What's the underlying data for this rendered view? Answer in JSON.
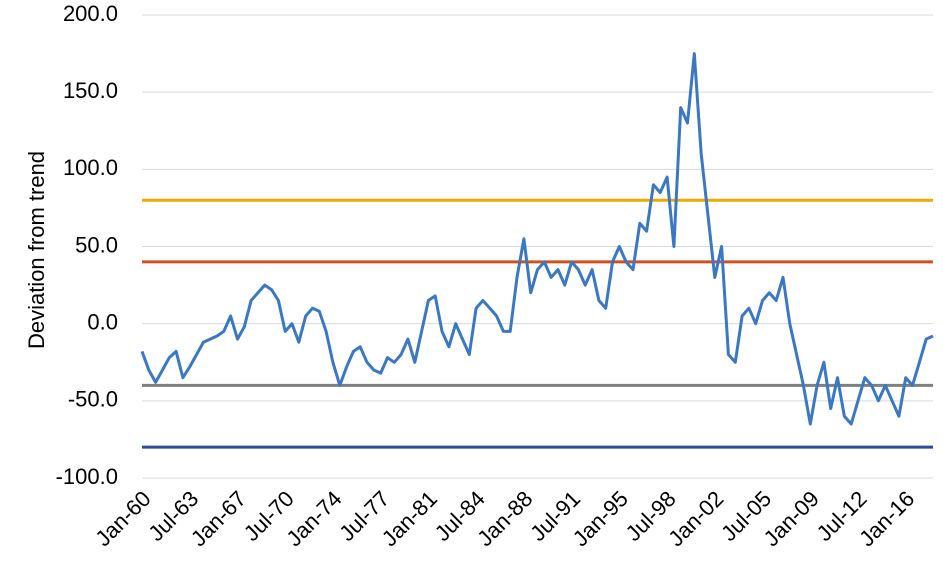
{
  "chart_data": {
    "type": "line",
    "y_label": "Deviation from trend",
    "x": [
      "Jan-60",
      null,
      null,
      null,
      null,
      null,
      null,
      "Jul-63",
      null,
      null,
      null,
      null,
      null,
      null,
      "Jan-67",
      null,
      null,
      null,
      null,
      null,
      null,
      "Jul-70",
      null,
      null,
      null,
      null,
      null,
      null,
      "Jan-74",
      null,
      null,
      null,
      null,
      null,
      null,
      "Jul-77",
      null,
      null,
      null,
      null,
      null,
      null,
      "Jan-81",
      null,
      null,
      null,
      null,
      null,
      null,
      "Jul-84",
      null,
      null,
      null,
      null,
      null,
      null,
      "Jan-88",
      null,
      null,
      null,
      null,
      null,
      null,
      "Jul-91",
      null,
      null,
      null,
      null,
      null,
      null,
      "Jan-95",
      null,
      null,
      null,
      null,
      null,
      null,
      "Jul-98",
      null,
      null,
      null,
      null,
      null,
      null,
      "Jan-02",
      null,
      null,
      null,
      null,
      null,
      null,
      "Jul-05",
      null,
      null,
      null,
      null,
      null,
      null,
      "Jan-09",
      null,
      null,
      null,
      null,
      null,
      null,
      "Jul-12",
      null,
      null,
      null,
      null,
      null,
      null,
      "Jan-16",
      null,
      null,
      null,
      null
    ],
    "series": [
      {
        "color": "#3a78c4",
        "values": [
          -18,
          -30,
          -38,
          -30,
          -22,
          -18,
          -35,
          -28,
          -20,
          -12,
          -10,
          -8,
          -5,
          5,
          -10,
          -2,
          15,
          20,
          25,
          22,
          15,
          -5,
          0,
          -12,
          5,
          10,
          8,
          -5,
          -25,
          -40,
          -28,
          -18,
          -15,
          -25,
          -30,
          -32,
          -22,
          -25,
          -20,
          -10,
          -25,
          -5,
          15,
          18,
          -5,
          -15,
          0,
          -10,
          -20,
          10,
          15,
          10,
          5,
          -5,
          -5,
          30,
          55,
          20,
          35,
          40,
          30,
          35,
          25,
          40,
          35,
          25,
          35,
          15,
          10,
          40,
          50,
          40,
          35,
          65,
          60,
          90,
          85,
          95,
          50,
          140,
          130,
          175,
          110,
          70,
          30,
          50,
          -20,
          -25,
          5,
          10,
          0,
          15,
          20,
          15,
          30,
          0,
          -20,
          -40,
          -65,
          -40,
          -25,
          -55,
          -35,
          -60,
          -65,
          -50,
          -35,
          -40,
          -50,
          -40,
          -50,
          -60,
          -35,
          -40,
          -25,
          -10,
          -8
        ]
      }
    ],
    "reference_lines": [
      {
        "value": 80,
        "color": "#f2a900"
      },
      {
        "value": 40,
        "color": "#d2501e"
      },
      {
        "value": -40,
        "color": "#7f7f7f"
      },
      {
        "value": -80,
        "color": "#2a4a9a"
      }
    ],
    "ylim": [
      -100,
      200
    ],
    "yticks": [
      {
        "value": -100,
        "label": "-100.0"
      },
      {
        "value": -50,
        "label": "-50.0"
      },
      {
        "value": 0,
        "label": "0.0"
      },
      {
        "value": 50,
        "label": "50.0"
      },
      {
        "value": 100,
        "label": "100.0"
      },
      {
        "value": 150,
        "label": "150.0"
      },
      {
        "value": 200,
        "label": "200.0"
      }
    ],
    "grid": true
  }
}
